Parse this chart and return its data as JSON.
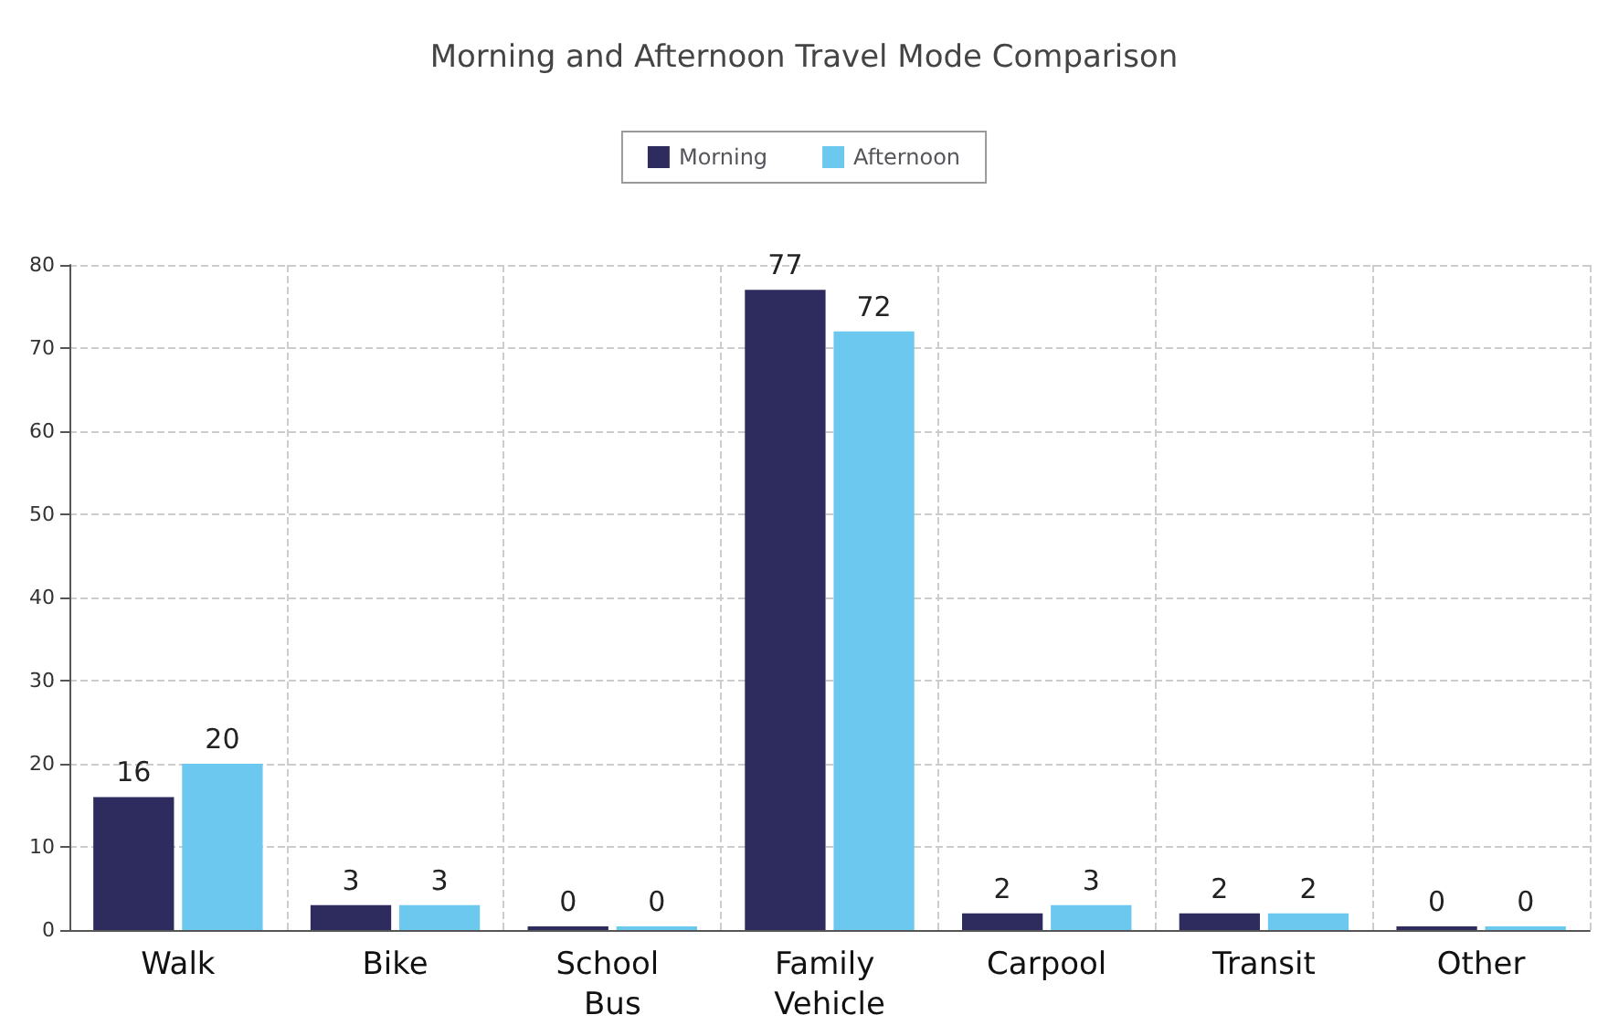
{
  "chart_data": {
    "type": "bar",
    "title": "Morning and Afternoon Travel Mode Comparison",
    "categories": [
      "Walk",
      "Bike",
      "School Bus",
      "Family Vehicle",
      "Carpool",
      "Transit",
      "Other"
    ],
    "series": [
      {
        "name": "Morning",
        "color": "#2e2b5f",
        "values": [
          16,
          3,
          0,
          77,
          2,
          2,
          0
        ]
      },
      {
        "name": "Afternoon",
        "color": "#6cc8ee",
        "values": [
          20,
          3,
          0,
          72,
          3,
          2,
          0
        ]
      }
    ],
    "ylim": [
      0,
      80
    ],
    "yticks": [
      0,
      10,
      20,
      30,
      40,
      50,
      60,
      70,
      80
    ],
    "grid": true,
    "legend": "top",
    "data_labels": true
  }
}
